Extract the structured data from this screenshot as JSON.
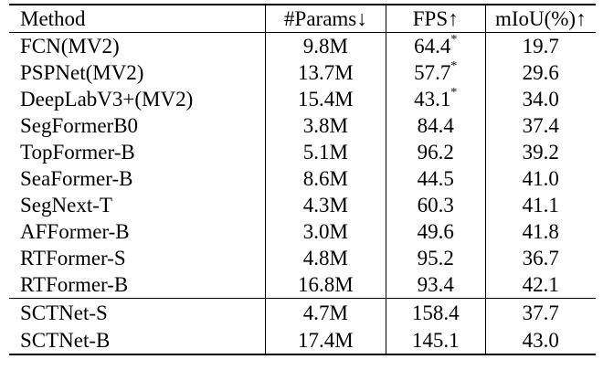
{
  "table": {
    "headers": [
      "Method",
      "#Params↓",
      "FPS↑",
      "mIoU(%)↑"
    ],
    "rows": [
      {
        "method": "FCN(MV2)",
        "params": "9.8M",
        "fps": "64.4",
        "fps_mark": "*",
        "miou": "19.7"
      },
      {
        "method": "PSPNet(MV2)",
        "params": "13.7M",
        "fps": "57.7",
        "fps_mark": "*",
        "miou": "29.6"
      },
      {
        "method": "DeepLabV3+(MV2)",
        "params": "15.4M",
        "fps": "43.1",
        "fps_mark": "*",
        "miou": "34.0"
      },
      {
        "method": "SegFormerB0",
        "params": "3.8M",
        "fps": "84.4",
        "fps_mark": "",
        "miou": "37.4"
      },
      {
        "method": "TopFormer-B",
        "params": "5.1M",
        "fps": "96.2",
        "fps_mark": "",
        "miou": "39.2"
      },
      {
        "method": "SeaFormer-B",
        "params": "8.6M",
        "fps": "44.5",
        "fps_mark": "",
        "miou": "41.0"
      },
      {
        "method": "SegNext-T",
        "params": "4.3M",
        "fps": "60.3",
        "fps_mark": "",
        "miou": "41.1"
      },
      {
        "method": "AFFormer-B",
        "params": "3.0M",
        "fps": "49.6",
        "fps_mark": "",
        "miou": "41.8"
      },
      {
        "method": "RTFormer-S",
        "params": "4.8M",
        "fps": "95.2",
        "fps_mark": "",
        "miou": "36.7"
      },
      {
        "method": "RTFormer-B",
        "params": "16.8M",
        "fps": "93.4",
        "fps_mark": "",
        "miou": "42.1"
      },
      {
        "method": "SCTNet-S",
        "params": "4.7M",
        "fps": "158.4",
        "fps_mark": "",
        "miou": "37.7"
      },
      {
        "method": "SCTNet-B",
        "params": "17.4M",
        "fps": "145.1",
        "fps_mark": "",
        "miou": "43.0"
      }
    ]
  }
}
